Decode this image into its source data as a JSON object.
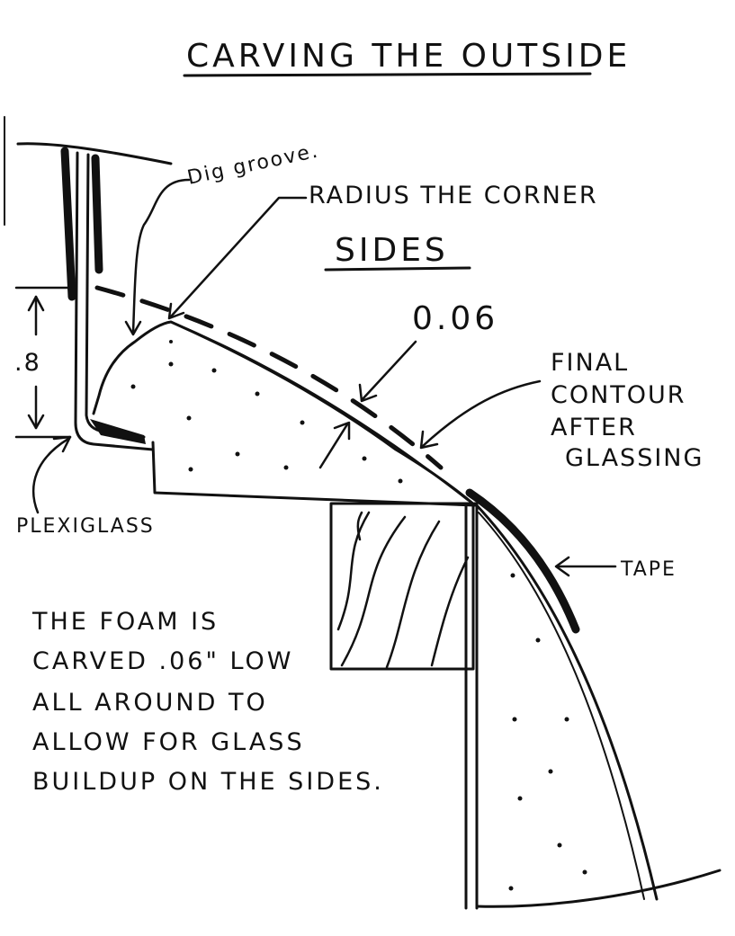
{
  "title": "CARVING THE OUTSIDE",
  "section_label": "SIDES",
  "labels": {
    "dig_groove": "Dig groove.",
    "radius_corner": "RADIUS THE CORNER",
    "offset": "0.06",
    "final_contour": [
      "FINAL",
      "CONTOUR",
      "AFTER",
      "GLASSING"
    ],
    "tape": "TAPE",
    "plexiglass": "PLEXIGLASS",
    "dimension": ".8"
  },
  "note": [
    "THE FOAM IS",
    "CARVED .06\" LOW",
    "ALL AROUND TO",
    "ALLOW FOR GLASS",
    "BUILDUP ON THE SIDES."
  ],
  "colors": {
    "ink": "#111111",
    "paper": "#ffffff"
  }
}
